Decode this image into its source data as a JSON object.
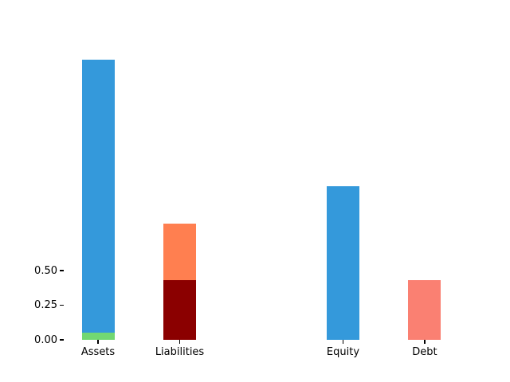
{
  "figure": {
    "background": "#ffffff",
    "title": ""
  },
  "chart_data": {
    "type": "bar",
    "stacked": true,
    "title": "",
    "xlabel": "",
    "ylabel": "",
    "grid": false,
    "legend": false,
    "categories": [
      "Assets",
      "Liabilities",
      "Equity",
      "Debt"
    ],
    "bars": [
      {
        "category": "Assets",
        "x": 0,
        "total": 2.02,
        "segments": [
          {
            "color_name": "green",
            "color": "#72d872",
            "value": 0.05
          },
          {
            "color_name": "blue",
            "color": "#3499db",
            "value": 1.97
          }
        ]
      },
      {
        "category": "Liabilities",
        "x": 1,
        "total": 0.84,
        "segments": [
          {
            "color_name": "darkred",
            "color": "#8b0000",
            "value": 0.43
          },
          {
            "color_name": "coral",
            "color": "#ff7f50",
            "value": 0.41
          }
        ]
      },
      {
        "category": "Equity",
        "x": 3,
        "total": 1.11,
        "segments": [
          {
            "color_name": "blue",
            "color": "#3499db",
            "value": 1.11
          }
        ]
      },
      {
        "category": "Debt",
        "x": 4,
        "total": 0.43,
        "segments": [
          {
            "color_name": "salmon",
            "color": "#fa8072",
            "value": 0.43
          }
        ]
      }
    ],
    "y_ticks": [
      {
        "value": 0.0,
        "label": "0.00"
      },
      {
        "value": 0.25,
        "label": "0.25"
      },
      {
        "value": 0.5,
        "label": "0.50"
      }
    ],
    "xlim": [
      -0.42,
      4.42
    ],
    "ylim": [
      0,
      2.12
    ],
    "bar_width": 0.4,
    "tick_color": "#000000",
    "label_color": "#000000"
  }
}
